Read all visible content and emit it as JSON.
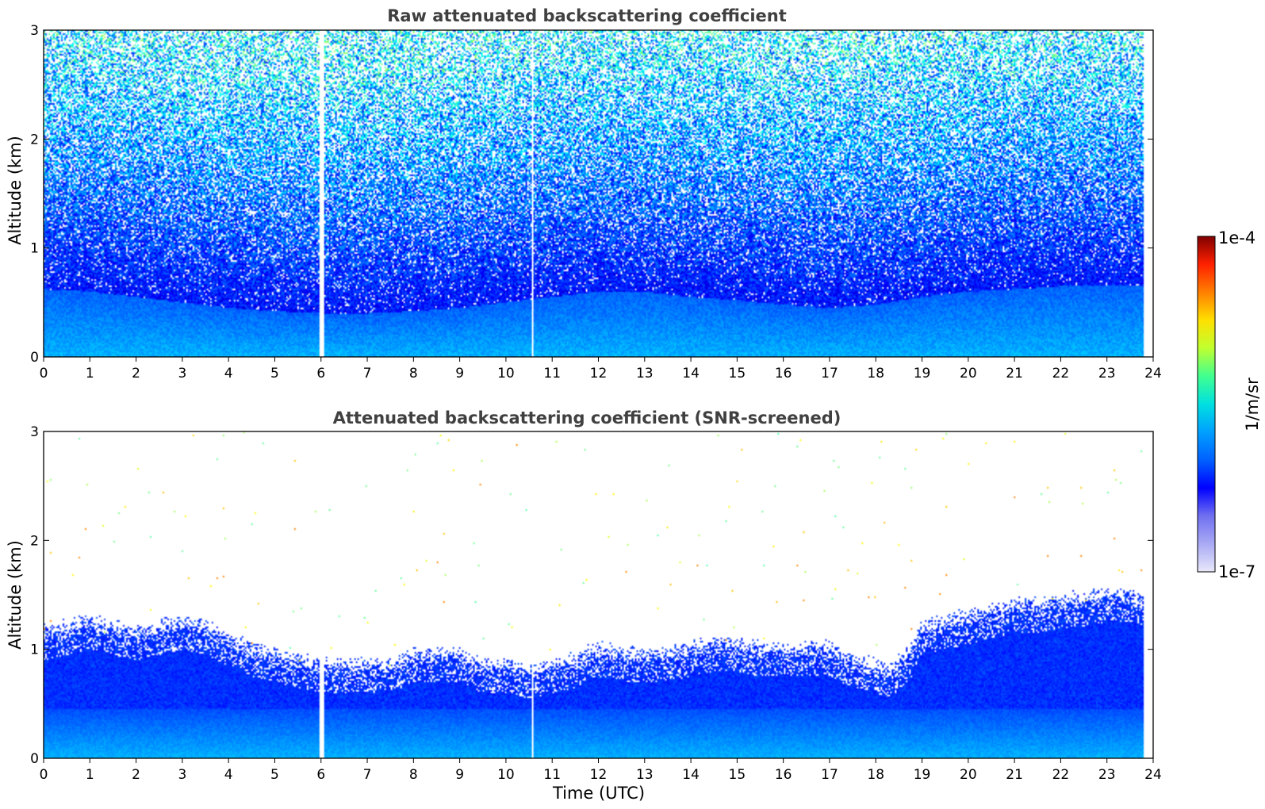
{
  "chart_data": [
    {
      "type": "heatmap",
      "title": "Raw attenuated backscattering coefficient",
      "xlabel": "",
      "ylabel": "Altitude (km)",
      "xlim": [
        0,
        24
      ],
      "ylim": [
        0,
        3
      ],
      "x_ticks": [
        "0",
        "1",
        "2",
        "3",
        "4",
        "5",
        "6",
        "7",
        "8",
        "9",
        "10",
        "11",
        "12",
        "13",
        "14",
        "15",
        "16",
        "17",
        "18",
        "19",
        "20",
        "21",
        "22",
        "23",
        "24"
      ],
      "y_ticks": [
        "0",
        "1",
        "2",
        "3"
      ],
      "data_end_hour": 23.8,
      "mode": "raw",
      "gaps_hours": [
        5.95,
        6.0,
        6.05,
        10.55
      ],
      "boundary_layer_top_km": [
        [
          0,
          0.62
        ],
        [
          1,
          0.6
        ],
        [
          2,
          0.55
        ],
        [
          3,
          0.5
        ],
        [
          4,
          0.45
        ],
        [
          5,
          0.42
        ],
        [
          6,
          0.4
        ],
        [
          7,
          0.4
        ],
        [
          8,
          0.42
        ],
        [
          9,
          0.45
        ],
        [
          10,
          0.5
        ],
        [
          11,
          0.55
        ],
        [
          12,
          0.6
        ],
        [
          13,
          0.6
        ],
        [
          14,
          0.55
        ],
        [
          15,
          0.52
        ],
        [
          16,
          0.48
        ],
        [
          17,
          0.45
        ],
        [
          18,
          0.48
        ],
        [
          19,
          0.55
        ],
        [
          20,
          0.6
        ],
        [
          21,
          0.62
        ],
        [
          22,
          0.65
        ],
        [
          23,
          0.65
        ],
        [
          23.8,
          0.65
        ]
      ]
    },
    {
      "type": "heatmap",
      "title": "Attenuated backscattering coefficient (SNR-screened)",
      "xlabel": "Time (UTC)",
      "ylabel": "Altitude (km)",
      "xlim": [
        0,
        24
      ],
      "ylim": [
        0,
        3
      ],
      "x_ticks": [
        "0",
        "1",
        "2",
        "3",
        "4",
        "5",
        "6",
        "7",
        "8",
        "9",
        "10",
        "11",
        "12",
        "13",
        "14",
        "15",
        "16",
        "17",
        "18",
        "19",
        "20",
        "21",
        "22",
        "23",
        "24"
      ],
      "y_ticks": [
        "0",
        "1",
        "2",
        "3"
      ],
      "data_end_hour": 23.8,
      "mode": "screened",
      "gaps_hours": [
        5.95,
        6.0,
        6.05,
        10.55
      ],
      "signal_top_km": [
        [
          0,
          1.15
        ],
        [
          0.5,
          1.2
        ],
        [
          1,
          1.25
        ],
        [
          1.5,
          1.2
        ],
        [
          2,
          1.15
        ],
        [
          2.5,
          1.2
        ],
        [
          3,
          1.25
        ],
        [
          3.5,
          1.2
        ],
        [
          4,
          1.1
        ],
        [
          4.5,
          1.0
        ],
        [
          5,
          0.95
        ],
        [
          5.5,
          0.9
        ],
        [
          6,
          0.85
        ],
        [
          6.5,
          0.85
        ],
        [
          7,
          0.85
        ],
        [
          7.5,
          0.85
        ],
        [
          8,
          0.95
        ],
        [
          8.5,
          0.95
        ],
        [
          9,
          0.95
        ],
        [
          9.5,
          0.85
        ],
        [
          10,
          0.85
        ],
        [
          10.5,
          0.8
        ],
        [
          11,
          0.85
        ],
        [
          11.5,
          0.9
        ],
        [
          12,
          1.0
        ],
        [
          12.5,
          0.95
        ],
        [
          13,
          0.95
        ],
        [
          13.5,
          0.95
        ],
        [
          14,
          1.0
        ],
        [
          14.5,
          1.05
        ],
        [
          15,
          1.05
        ],
        [
          15.5,
          1.0
        ],
        [
          16,
          1.0
        ],
        [
          16.5,
          1.0
        ],
        [
          17,
          1.0
        ],
        [
          17.5,
          0.9
        ],
        [
          18,
          0.85
        ],
        [
          18.3,
          0.8
        ],
        [
          18.8,
          1.0
        ],
        [
          19,
          1.2
        ],
        [
          19.5,
          1.25
        ],
        [
          20,
          1.3
        ],
        [
          20.5,
          1.35
        ],
        [
          21,
          1.4
        ],
        [
          21.5,
          1.4
        ],
        [
          22,
          1.45
        ],
        [
          22.5,
          1.45
        ],
        [
          23,
          1.5
        ],
        [
          23.5,
          1.5
        ],
        [
          23.8,
          1.45
        ]
      ]
    }
  ],
  "colorbar": {
    "label": "1/m/sr",
    "max_label": "1e-4",
    "min_label": "1e-7",
    "scale": "log",
    "colormap": "jet",
    "colors": [
      "#e8e8fa",
      "#aaaaf5",
      "#7070f0",
      "#0000ff",
      "#0060ff",
      "#00a0ff",
      "#00e0e0",
      "#40ff90",
      "#c0ff30",
      "#ffe000",
      "#ff8000",
      "#ff2000",
      "#800000"
    ]
  }
}
